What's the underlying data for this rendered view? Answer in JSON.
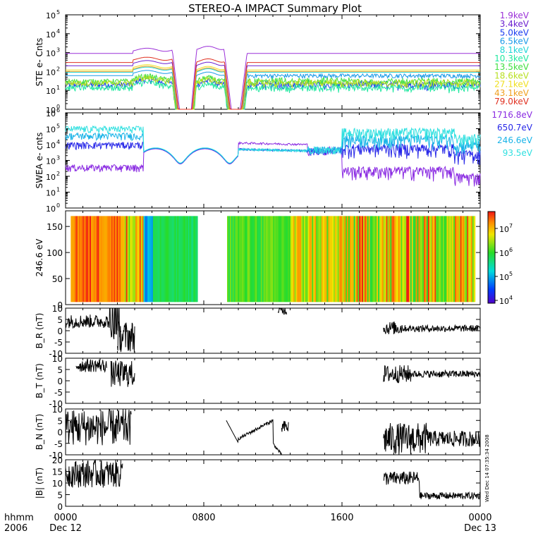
{
  "title": "STEREO-A IMPACT Summary Plot",
  "colors": {
    "ste": [
      "#9b30d8",
      "#6a1fd0",
      "#1a3cf0",
      "#1a9ae8",
      "#20d6d6",
      "#20e8a0",
      "#40e040",
      "#b8e020",
      "#f0e020",
      "#f0a020",
      "#e03020"
    ],
    "swea": [
      "#8a2be2",
      "#2828e8",
      "#1ab4e8",
      "#30e0e0"
    ]
  },
  "chart_data": [
    {
      "type": "line",
      "ylabel": "STE e- Cnts",
      "yscale": "log",
      "ylim": [
        1,
        100000
      ],
      "yticks": [
        "10^0",
        "10^1",
        "10^2",
        "10^3",
        "10^4",
        "10^5"
      ],
      "legend": [
        "1.9keV",
        "3.4keV",
        "5.0keV",
        "6.5keV",
        "8.1keV",
        "10.3keV",
        "13.5keV",
        "18.6keV",
        "27.1keV",
        "43.1keV",
        "79.0keV"
      ],
      "series": [
        {
          "name": "1.9keV",
          "baseline": 900
        },
        {
          "name": "3.4keV",
          "baseline": 200
        },
        {
          "name": "5.0keV",
          "baseline": 20
        },
        {
          "name": "6.5keV",
          "baseline": 60
        },
        {
          "name": "8.1keV",
          "baseline": 90
        },
        {
          "name": "10.3keV",
          "baseline": 14
        },
        {
          "name": "13.5keV",
          "baseline": 30
        },
        {
          "name": "18.6keV",
          "baseline": 25
        },
        {
          "name": "27.1keV",
          "baseline": 120
        },
        {
          "name": "43.1keV",
          "baseline": 100
        },
        {
          "name": "79.0keV",
          "baseline": 300
        }
      ]
    },
    {
      "type": "line",
      "ylabel": "SWEA e- cnts",
      "yscale": "log",
      "ylim": [
        1,
        1000000
      ],
      "yticks": [
        "10^0",
        "10^1",
        "10^2",
        "10^3",
        "10^4",
        "10^5",
        "10^6"
      ],
      "legend": [
        "1716.8eV",
        "650.7eV",
        "246.6eV",
        "93.5eV"
      ]
    },
    {
      "type": "heatmap",
      "ylabel": "246.6 eV",
      "ylim": [
        0,
        180
      ],
      "yticks": [
        "0",
        "50",
        "100",
        "150"
      ],
      "colorbar_ticks": [
        "10^4",
        "10^5",
        "10^6",
        "10^7"
      ]
    },
    {
      "type": "line",
      "ylabel": "B_R (nT)",
      "ylim": [
        -10,
        10
      ],
      "yticks": [
        "-10",
        "-5",
        "0",
        "5",
        "10"
      ]
    },
    {
      "type": "line",
      "ylabel": "B_T (nT)",
      "ylim": [
        -10,
        10
      ],
      "yticks": [
        "-10",
        "-5",
        "0",
        "5",
        "10"
      ]
    },
    {
      "type": "line",
      "ylabel": "B_N (nT)",
      "ylim": [
        -10,
        10
      ],
      "yticks": [
        "-10",
        "-5",
        "0",
        "5",
        "10"
      ]
    },
    {
      "type": "line",
      "ylabel": "|B| (nT)",
      "ylim": [
        0,
        20
      ],
      "yticks": [
        "0",
        "5",
        "10",
        "15",
        "20"
      ]
    }
  ],
  "xaxis": {
    "label_left": "hhmm",
    "year": "2006",
    "ticks": [
      "0000",
      "0800",
      "1600",
      "0000"
    ],
    "dates": [
      "Dec 12",
      "Dec 13"
    ]
  },
  "stamp": "Wed Dec 14 07:35:34 2008"
}
